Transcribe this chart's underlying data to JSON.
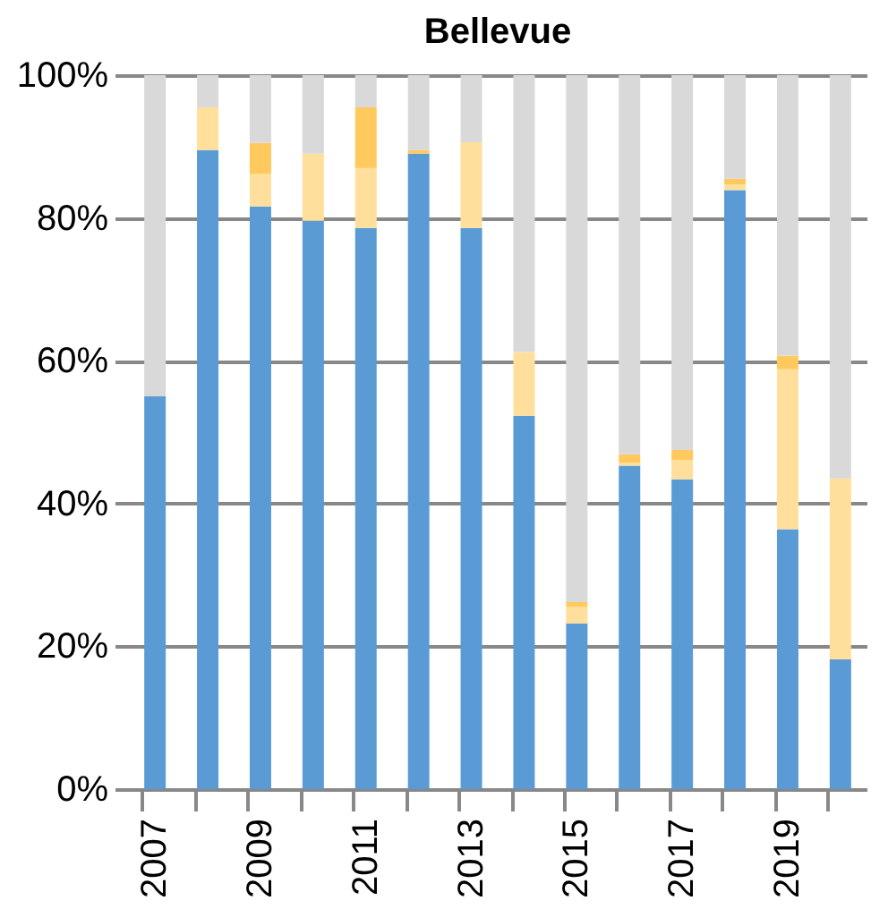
{
  "chart_data": {
    "type": "bar",
    "title": "Bellevue",
    "stacked": true,
    "categories": [
      "2007",
      null,
      "2009",
      null,
      "2011",
      null,
      "2013",
      null,
      "2015",
      null,
      "2017",
      null,
      "2019",
      null
    ],
    "series": [
      {
        "color": "#5b9bd5",
        "values": [
          55,
          89.5,
          81.6,
          79.6,
          78.6,
          89,
          78.6,
          52.3,
          23.2,
          45.3,
          43.4,
          83.9,
          36.4,
          18.2
        ]
      },
      {
        "color": "#ffdf9b",
        "values": [
          0,
          6,
          4.6,
          9.4,
          8.4,
          0,
          12,
          8.9,
          2.3,
          0.4,
          2.7,
          0.8,
          22.4,
          25.3
        ]
      },
      {
        "color": "#ffc95e",
        "values": [
          0,
          0,
          4.3,
          0,
          8.5,
          0.5,
          0,
          0,
          0.7,
          1.2,
          1.4,
          0.8,
          1.9,
          0
        ]
      },
      {
        "color": "#d9d9d9",
        "values": [
          45,
          4.5,
          9.5,
          11,
          4.5,
          10.5,
          9.4,
          38.8,
          73.8,
          53.1,
          52.5,
          14.5,
          39.3,
          56.5
        ]
      }
    ],
    "ylim": [
      0,
      100
    ],
    "yticks": [
      {
        "value": 0,
        "label": "0%"
      },
      {
        "value": 20,
        "label": "20%"
      },
      {
        "value": 40,
        "label": "40%"
      },
      {
        "value": 60,
        "label": "60%"
      },
      {
        "value": 80,
        "label": "80%"
      },
      {
        "value": 100,
        "label": "100%"
      }
    ],
    "grid": "y",
    "legend": false
  }
}
